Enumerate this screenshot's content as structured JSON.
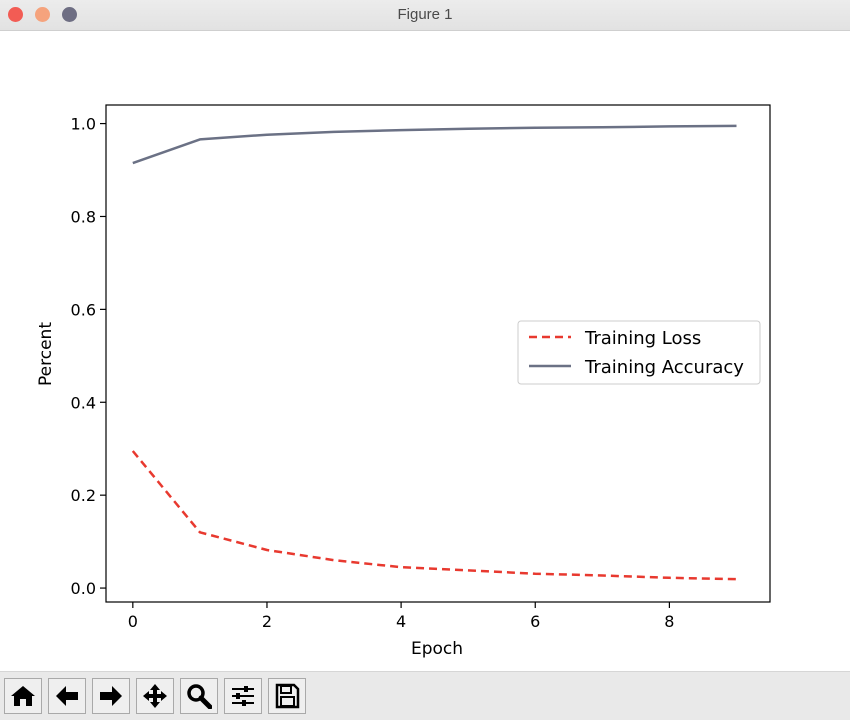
{
  "window": {
    "title": "Figure 1"
  },
  "toolbar": {
    "buttons": [
      {
        "icon": "home-icon"
      },
      {
        "icon": "back-arrow-icon"
      },
      {
        "icon": "forward-arrow-icon"
      },
      {
        "icon": "pan-icon"
      },
      {
        "icon": "zoom-icon"
      },
      {
        "icon": "configure-subplots-icon"
      },
      {
        "icon": "save-icon"
      }
    ]
  },
  "chart_data": {
    "type": "line",
    "title": "",
    "xlabel": "Epoch",
    "ylabel": "Percent",
    "xlim": [
      -0.4,
      9.5
    ],
    "ylim": [
      -0.03,
      1.04
    ],
    "xticks": [
      0,
      2,
      4,
      6,
      8
    ],
    "xtick_labels": [
      "0",
      "2",
      "4",
      "6",
      "8"
    ],
    "yticks": [
      0.0,
      0.2,
      0.4,
      0.6,
      0.8,
      1.0
    ],
    "ytick_labels": [
      "0.0",
      "0.2",
      "0.4",
      "0.6",
      "0.8",
      "1.0"
    ],
    "grid": false,
    "legend_position": "center-right",
    "x": [
      0,
      1,
      2,
      3,
      4,
      5,
      6,
      7,
      8,
      9
    ],
    "series": [
      {
        "name": "Training Loss",
        "style": "dashed",
        "color": "#e8392f",
        "values": [
          0.295,
          0.12,
          0.082,
          0.06,
          0.045,
          0.038,
          0.031,
          0.027,
          0.022,
          0.019
        ]
      },
      {
        "name": "Training Accuracy",
        "style": "solid",
        "color": "#6b7185",
        "values": [
          0.915,
          0.966,
          0.976,
          0.982,
          0.986,
          0.989,
          0.991,
          0.992,
          0.994,
          0.995
        ]
      }
    ]
  }
}
